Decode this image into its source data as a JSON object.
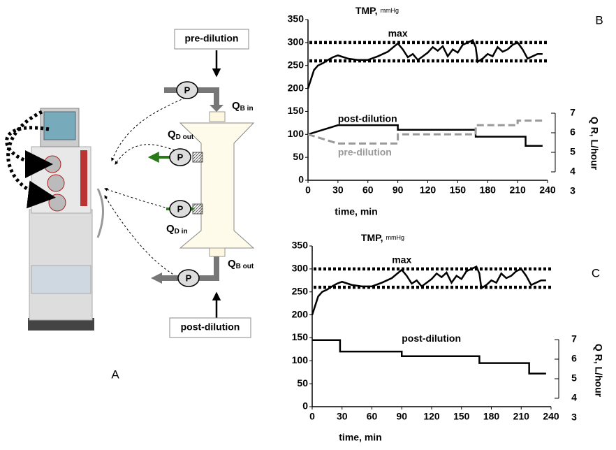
{
  "diagram": {
    "panel": "A",
    "boxes": [
      "pre-dilution",
      "post-dilution"
    ],
    "pumps": [
      "P",
      "P",
      "P",
      "P"
    ],
    "flows": [
      {
        "q": "Q",
        "sub": "B in"
      },
      {
        "q": "Q",
        "sub": "D out"
      },
      {
        "q": "Q",
        "sub": "D in"
      },
      {
        "q": "Q",
        "sub": "B out"
      }
    ]
  },
  "chart_data": [
    {
      "type": "line",
      "panel": "B",
      "title": "TMP,",
      "title_unit": "mmHg",
      "xlabel": "time,  min",
      "y2label": "Q R,  L/hour",
      "xlim": [
        0,
        240
      ],
      "ylim": [
        0,
        350
      ],
      "xticks": [
        0,
        30,
        60,
        90,
        120,
        150,
        180,
        210,
        240
      ],
      "yticks": [
        0,
        50,
        100,
        150,
        200,
        250,
        300,
        350
      ],
      "y2lim": [
        3.57,
        11.79
      ],
      "y2ticks": [
        3,
        4,
        5,
        6,
        7
      ],
      "reference_lines": {
        "label": "max",
        "values": [
          300,
          260
        ]
      },
      "series": [
        {
          "color": "#000000",
          "x": [
            0,
            3,
            6,
            10,
            15,
            20,
            25,
            30,
            40,
            50,
            60,
            70,
            80,
            90,
            95,
            100,
            105,
            110,
            115,
            120,
            125,
            130,
            135,
            140,
            145,
            150,
            155,
            160,
            165,
            168,
            170,
            175,
            180,
            185,
            190,
            195,
            200,
            205,
            210,
            215,
            220,
            225,
            230,
            235
          ],
          "values": [
            200,
            220,
            240,
            250,
            255,
            262,
            268,
            272,
            265,
            262,
            262,
            270,
            280,
            298,
            285,
            268,
            275,
            262,
            270,
            278,
            290,
            282,
            292,
            270,
            285,
            278,
            295,
            300,
            305,
            290,
            258,
            265,
            275,
            270,
            290,
            280,
            285,
            295,
            300,
            285,
            265,
            270,
            275,
            275
          ]
        },
        {
          "name": "post-dilution",
          "color": "#000000",
          "x": [
            0,
            30,
            90,
            90,
            168,
            168,
            218,
            218,
            235
          ],
          "values": [
            100,
            120,
            120,
            110,
            110,
            95,
            95,
            75,
            75
          ]
        },
        {
          "name": "pre-dilution",
          "color": "#999999",
          "dash": true,
          "x": [
            0,
            30,
            90,
            90,
            168,
            168,
            210,
            210,
            235
          ],
          "values": [
            100,
            80,
            80,
            100,
            100,
            120,
            120,
            130,
            130
          ]
        }
      ]
    },
    {
      "type": "line",
      "panel": "C",
      "title": "TMP,",
      "title_unit": "mmHg",
      "xlabel": "time,  min",
      "y2label": "Q R,  L/hour",
      "xlim": [
        0,
        240
      ],
      "ylim": [
        0,
        350
      ],
      "xticks": [
        0,
        30,
        60,
        90,
        120,
        150,
        180,
        210,
        240
      ],
      "yticks": [
        0,
        50,
        100,
        150,
        200,
        250,
        300,
        350
      ],
      "y2lim": [
        3.57,
        11.79
      ],
      "y2ticks": [
        3,
        4,
        5,
        6,
        7
      ],
      "reference_lines": {
        "label": "max",
        "values": [
          300,
          260
        ]
      },
      "series": [
        {
          "color": "#000000",
          "x": [
            0,
            3,
            6,
            10,
            15,
            20,
            25,
            30,
            40,
            50,
            60,
            70,
            80,
            90,
            95,
            100,
            105,
            110,
            115,
            120,
            125,
            130,
            135,
            140,
            145,
            150,
            155,
            160,
            165,
            168,
            170,
            175,
            180,
            185,
            190,
            195,
            200,
            205,
            210,
            215,
            220,
            225,
            230,
            235
          ],
          "values": [
            200,
            220,
            240,
            250,
            255,
            262,
            268,
            272,
            265,
            262,
            262,
            270,
            280,
            298,
            285,
            268,
            275,
            262,
            270,
            278,
            290,
            282,
            292,
            270,
            285,
            278,
            295,
            300,
            305,
            290,
            258,
            265,
            275,
            270,
            290,
            280,
            285,
            295,
            300,
            285,
            265,
            270,
            275,
            275
          ]
        },
        {
          "name": "post-dilution",
          "color": "#000000",
          "x": [
            0,
            28,
            28,
            90,
            90,
            168,
            168,
            218,
            218,
            235
          ],
          "values": [
            145,
            145,
            120,
            120,
            110,
            110,
            95,
            95,
            72,
            72
          ]
        }
      ]
    }
  ]
}
